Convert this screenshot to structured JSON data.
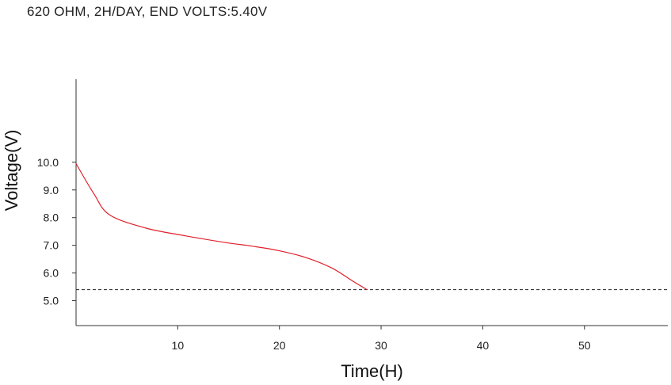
{
  "chart_data": {
    "type": "line",
    "title": "620 OHM, 2H/DAY, END VOLTS:5.40V",
    "xlabel": "Time(H)",
    "ylabel": "Voltage(V)",
    "xlim": [
      0,
      58.2
    ],
    "ylim": [
      4.1,
      13.0
    ],
    "xticks": [
      10,
      20,
      30,
      40,
      50
    ],
    "xtick_labels": [
      "10",
      "20",
      "30",
      "40",
      "50"
    ],
    "yticks": [
      5,
      6,
      7,
      8,
      9,
      10
    ],
    "ytick_labels": [
      "5.0",
      "6.0",
      "7.0",
      "8.0",
      "9.0",
      "10.0"
    ],
    "grid": false,
    "end_voltage_line": 5.4,
    "series": [
      {
        "color": "#e0202a",
        "x": [
          0,
          1.74,
          3.3,
          6.9,
          10.8,
          14.7,
          17.3,
          19.9,
          22.5,
          25.1,
          27.2,
          28.6
        ],
        "y": [
          9.95,
          8.87,
          8.1,
          7.62,
          7.34,
          7.1,
          6.97,
          6.81,
          6.57,
          6.19,
          5.71,
          5.4
        ]
      }
    ]
  }
}
